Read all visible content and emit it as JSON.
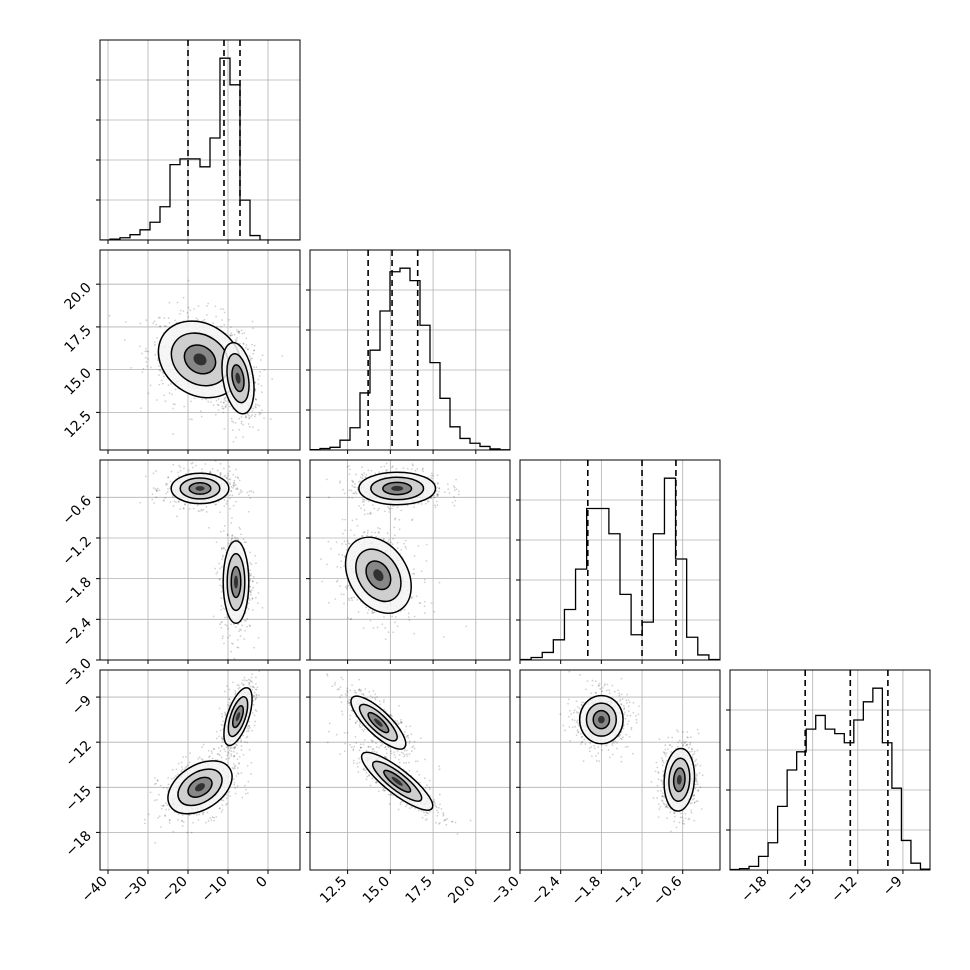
{
  "chart_data": {
    "type": "corner",
    "grid": true,
    "params": [
      {
        "range": [
          -42,
          8
        ],
        "ticks": [
          -40,
          -30,
          -20,
          -10,
          0
        ],
        "tick_labels": [
          "−40",
          "−30",
          "−20",
          "−10",
          "0"
        ],
        "quantiles": [
          -20,
          -11,
          -7
        ]
      },
      {
        "range": [
          10.3,
          22
        ],
        "ticks": [
          12.5,
          15.0,
          17.5,
          20.0
        ],
        "tick_labels": [
          "12.5",
          "15.0",
          "17.5",
          "20.0"
        ],
        "quantiles": [
          13.7,
          15.1,
          16.6
        ]
      },
      {
        "range": [
          -3.0,
          -0.05
        ],
        "ticks": [
          -3.0,
          -2.4,
          -1.8,
          -1.2,
          -0.6
        ],
        "tick_labels": [
          "−3.0",
          "−2.4",
          "−1.8",
          "−1.2",
          "−0.6"
        ],
        "quantiles": [
          -2.0,
          -1.2,
          -0.7
        ]
      },
      {
        "range": [
          -20.5,
          -7.2
        ],
        "ticks": [
          -18,
          -15,
          -12,
          -9
        ],
        "tick_labels": [
          "−18",
          "−15",
          "−12",
          "−9"
        ],
        "quantiles": [
          -15.5,
          -12.5,
          -10.0
        ]
      }
    ],
    "histograms": [
      [
        0.0,
        0.2,
        0.5,
        1.2,
        2.3,
        4.0,
        7.5,
        17.0,
        18.3,
        18.3,
        16.5,
        23.0,
        41.0,
        35.0,
        9.0,
        1.0,
        0.0,
        0.0,
        0.0,
        0.0
      ],
      [
        0.2,
        0.8,
        1.5,
        5.5,
        12.5,
        32.0,
        56.0,
        78.0,
        100.0,
        102.0,
        95.0,
        70.0,
        49.0,
        29.0,
        13.0,
        6.5,
        3.8,
        2.0,
        0.6,
        0.1
      ],
      [
        0.1,
        0.5,
        1.5,
        4.0,
        10.0,
        18.0,
        30.0,
        30.0,
        25.0,
        13.0,
        5.0,
        7.5,
        25.0,
        36.0,
        20.0,
        4.5,
        1.0,
        0.1
      ],
      [
        0.1,
        0.3,
        0.8,
        3.0,
        6.0,
        14.0,
        22.0,
        26.0,
        31.0,
        34.0,
        31.0,
        30.0,
        28.0,
        33.0,
        37.0,
        40.0,
        28.0,
        18.0,
        6.5,
        1.5,
        0.2
      ]
    ],
    "pairs": [
      {
        "row": 1,
        "col": 0,
        "blobs": [
          {
            "cx": -17,
            "cy": 15.6,
            "sx": 6.5,
            "sy": 1.4,
            "rho": -0.2,
            "w": 0.55
          },
          {
            "cx": -7.5,
            "cy": 14.5,
            "sx": 2.5,
            "sy": 1.3,
            "rho": -0.3,
            "w": 0.45
          }
        ]
      },
      {
        "row": 2,
        "col": 0,
        "blobs": [
          {
            "cx": -17,
            "cy": -0.47,
            "sx": 4.5,
            "sy": 0.14,
            "rho": 0.0,
            "w": 0.5
          },
          {
            "cx": -8,
            "cy": -1.85,
            "sx": 2.0,
            "sy": 0.38,
            "rho": 0.0,
            "w": 0.5
          }
        ]
      },
      {
        "row": 2,
        "col": 1,
        "blobs": [
          {
            "cx": 15.4,
            "cy": -0.47,
            "sx": 1.4,
            "sy": 0.15,
            "rho": 0.0,
            "w": 0.5
          },
          {
            "cx": 14.3,
            "cy": -1.75,
            "sx": 1.2,
            "sy": 0.35,
            "rho": -0.3,
            "w": 0.5
          }
        ]
      },
      {
        "row": 3,
        "col": 0,
        "blobs": [
          {
            "cx": -17,
            "cy": -15.0,
            "sx": 5.0,
            "sy": 1.1,
            "rho": 0.4,
            "w": 0.5
          },
          {
            "cx": -7.5,
            "cy": -10.3,
            "sx": 2.2,
            "sy": 1.2,
            "rho": 0.6,
            "w": 0.5
          }
        ]
      },
      {
        "row": 3,
        "col": 1,
        "blobs": [
          {
            "cx": 14.3,
            "cy": -10.7,
            "sx": 1.0,
            "sy": 1.1,
            "rho": -0.8,
            "w": 0.5
          },
          {
            "cx": 15.4,
            "cy": -14.6,
            "sx": 1.3,
            "sy": 1.2,
            "rho": -0.85,
            "w": 0.5
          }
        ]
      },
      {
        "row": 3,
        "col": 2,
        "blobs": [
          {
            "cx": -1.8,
            "cy": -10.5,
            "sx": 0.2,
            "sy": 1.0,
            "rho": 0.0,
            "w": 0.5
          },
          {
            "cx": -0.65,
            "cy": -14.5,
            "sx": 0.14,
            "sy": 1.3,
            "rho": 0.1,
            "w": 0.5
          }
        ]
      }
    ]
  }
}
